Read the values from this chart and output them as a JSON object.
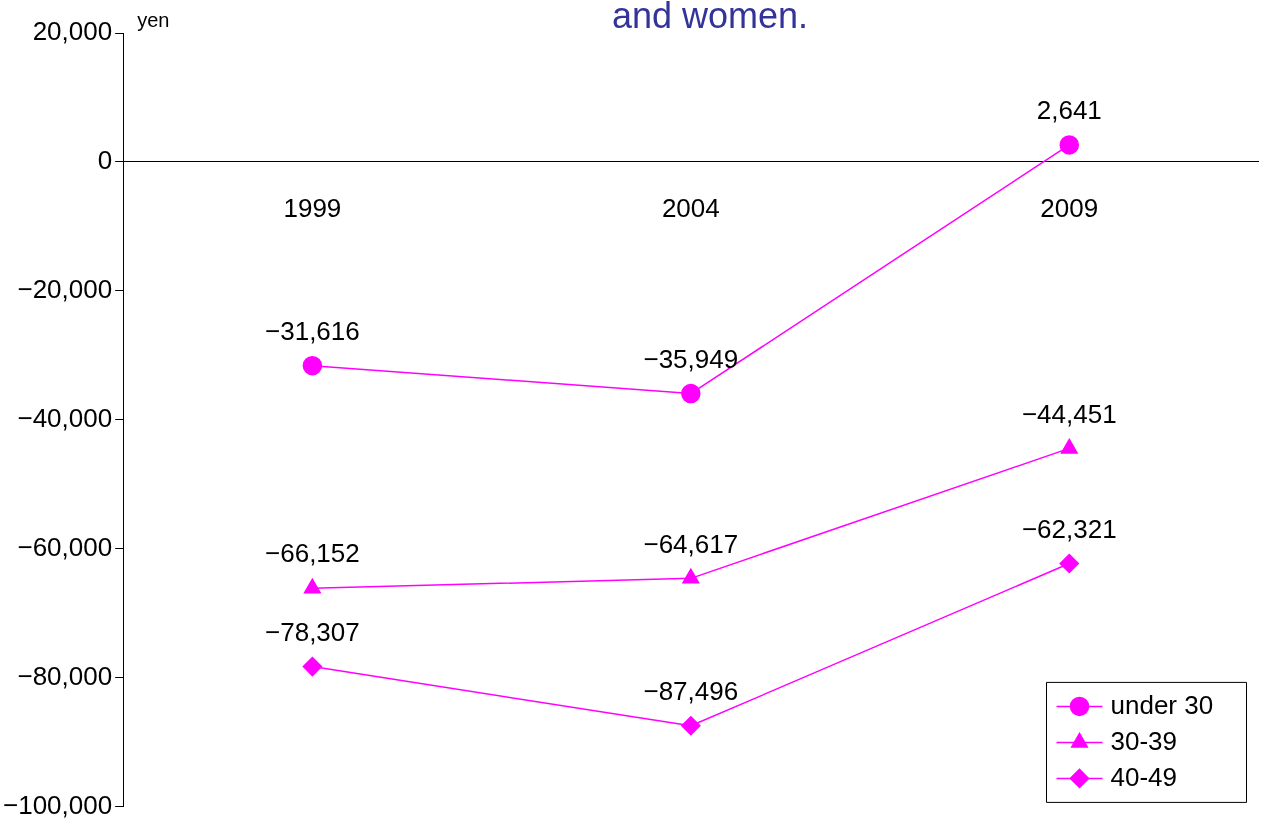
{
  "chart_data": {
    "type": "line",
    "title": "and women.",
    "ylabel": "yen",
    "categories": [
      "1999",
      "2004",
      "2009"
    ],
    "series": [
      {
        "name": "under 30",
        "color": "#ff00ff",
        "marker": "circle",
        "values": [
          -31616,
          -35949,
          2641
        ],
        "value_labels": [
          "−31,616",
          "−35,949",
          "2,641"
        ]
      },
      {
        "name": "30-39",
        "color": "#ff00ff",
        "marker": "triangle",
        "values": [
          -66152,
          -64617,
          -44451
        ],
        "value_labels": [
          "−66,152",
          "−64,617",
          "−44,451"
        ]
      },
      {
        "name": "40-49",
        "color": "#ff00ff",
        "marker": "diamond",
        "values": [
          -78307,
          -87496,
          -62321
        ],
        "value_labels": [
          "−78,307",
          "−87,496",
          "−62,321"
        ]
      }
    ],
    "ylim": [
      -100000,
      20000
    ],
    "yticks": [
      {
        "value": -100000,
        "label": "−100,000"
      },
      {
        "value": -80000,
        "label": "−80,000"
      },
      {
        "value": -60000,
        "label": "−60,000"
      },
      {
        "value": -40000,
        "label": "−40,000"
      },
      {
        "value": -20000,
        "label": "−20,000"
      },
      {
        "value": 0,
        "label": "0"
      },
      {
        "value": 20000,
        "label": "20,000"
      }
    ],
    "grid": false,
    "legend": "bottom right"
  }
}
